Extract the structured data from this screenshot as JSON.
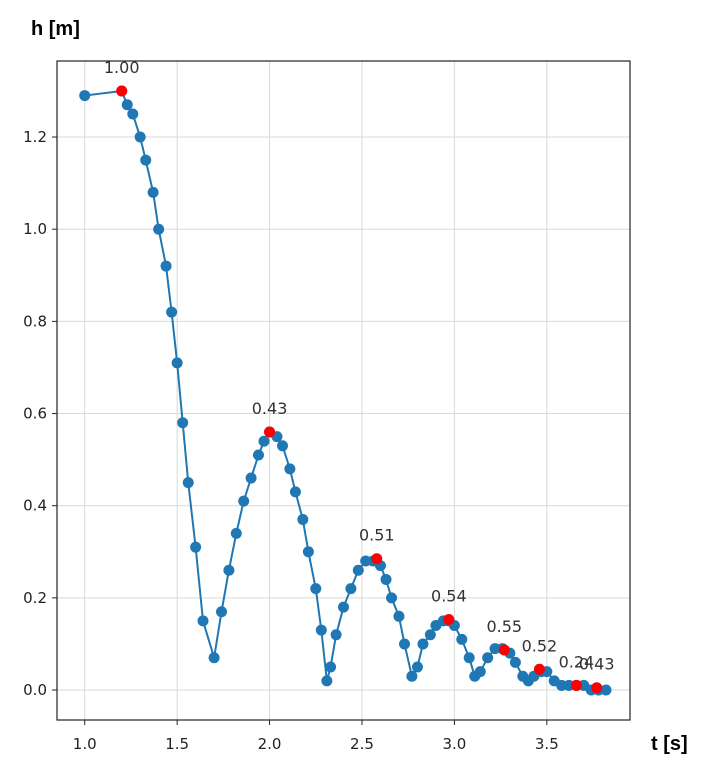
{
  "chart_data": {
    "type": "scatter",
    "title": "",
    "xlabel": "t [s]",
    "ylabel": "h [m]",
    "xlim": [
      0.85,
      3.95
    ],
    "ylim": [
      -0.065,
      1.365
    ],
    "xticks": [
      "1.0",
      "1.5",
      "2.0",
      "2.5",
      "3.0",
      "3.5"
    ],
    "yticks": [
      "0.0",
      "0.2",
      "0.4",
      "0.6",
      "0.8",
      "1.0",
      "1.2"
    ],
    "grid": true,
    "colors": {
      "line": "#1f77b4",
      "peak": "#ff0000",
      "grid": "#d9d9d9",
      "axis": "#222222"
    },
    "series": [
      {
        "x": [
          1.0,
          1.2,
          1.23,
          1.26,
          1.3,
          1.33,
          1.37,
          1.4,
          1.44,
          1.47,
          1.5,
          1.53,
          1.56,
          1.6,
          1.64,
          1.7,
          1.74,
          1.78,
          1.82,
          1.86,
          1.9,
          1.94,
          1.97,
          2.0,
          2.04,
          2.07,
          2.11,
          2.14,
          2.18,
          2.21,
          2.25,
          2.28,
          2.31,
          2.33,
          2.36,
          2.4,
          2.44,
          2.48,
          2.52,
          2.56,
          2.6,
          2.63,
          2.66,
          2.7,
          2.73,
          2.77,
          2.8,
          2.83,
          2.87,
          2.9,
          2.94,
          2.97,
          3.0,
          3.04,
          3.08,
          3.11,
          3.14,
          3.18,
          3.22,
          3.26,
          3.3,
          3.33,
          3.37,
          3.4,
          3.43,
          3.47,
          3.5,
          3.54,
          3.58,
          3.62,
          3.66,
          3.7,
          3.74,
          3.78,
          3.82
        ],
        "y": [
          1.29,
          1.3,
          1.27,
          1.25,
          1.2,
          1.15,
          1.08,
          1.0,
          0.92,
          0.82,
          0.71,
          0.58,
          0.45,
          0.31,
          0.15,
          0.07,
          0.17,
          0.26,
          0.34,
          0.41,
          0.46,
          0.51,
          0.54,
          0.56,
          0.55,
          0.53,
          0.48,
          0.43,
          0.37,
          0.3,
          0.22,
          0.13,
          0.02,
          0.05,
          0.12,
          0.18,
          0.22,
          0.26,
          0.28,
          0.28,
          0.27,
          0.24,
          0.2,
          0.16,
          0.1,
          0.03,
          0.05,
          0.1,
          0.12,
          0.14,
          0.15,
          0.15,
          0.14,
          0.11,
          0.07,
          0.03,
          0.04,
          0.07,
          0.09,
          0.09,
          0.08,
          0.06,
          0.03,
          0.02,
          0.03,
          0.04,
          0.04,
          0.02,
          0.01,
          0.01,
          0.01,
          0.01,
          0.0,
          0.0,
          0.0
        ]
      }
    ],
    "peaks": [
      {
        "x": 1.2,
        "y": 1.3,
        "label": "1.00"
      },
      {
        "x": 2.0,
        "y": 0.56,
        "label": "0.43"
      },
      {
        "x": 2.58,
        "y": 0.285,
        "label": "0.51"
      },
      {
        "x": 2.97,
        "y": 0.153,
        "label": "0.54"
      },
      {
        "x": 3.27,
        "y": 0.087,
        "label": "0.55"
      },
      {
        "x": 3.46,
        "y": 0.045,
        "label": "0.52"
      },
      {
        "x": 3.66,
        "y": 0.01,
        "label": "0.24"
      },
      {
        "x": 3.77,
        "y": 0.005,
        "label": "0.43"
      }
    ]
  }
}
